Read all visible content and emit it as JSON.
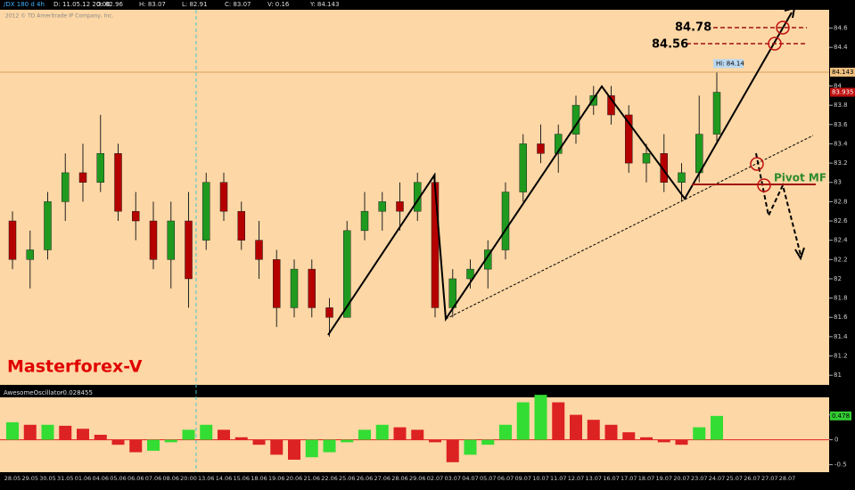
{
  "header": {
    "symbol": "/DX 180 d 4h",
    "fields": [
      "D: 11.05.12 20:00",
      "O: 82.96",
      "H: 83.07",
      "L: 82.91",
      "C: 83.07",
      "V: 0.16",
      "Y: 84.143"
    ]
  },
  "copyright": "2012 © TD Ameritrade IP Company, Inc.",
  "watermark": "Masterforex-V",
  "chart_data": [
    {
      "type": "candlestick",
      "categories": [
        "28.05",
        "29.05",
        "30.05",
        "31.05",
        "01.06",
        "04.06",
        "05.06",
        "06.06",
        "07.06",
        "08.06",
        "20:00",
        "13.06",
        "14.06",
        "15.06",
        "18.06",
        "19.06",
        "20.06",
        "21.06",
        "22.06",
        "25.06",
        "26.06",
        "27.06",
        "28.06",
        "29.06",
        "02.07",
        "03.07",
        "04.07",
        "05.07",
        "06.07",
        "09.07",
        "10.07",
        "11.07",
        "12.07",
        "13.07",
        "16.07",
        "17.07",
        "18.07",
        "19.07",
        "20.07",
        "23.07",
        "24.07",
        "25.07",
        "26.07",
        "27.07",
        "28.07"
      ],
      "open": [
        82.6,
        82.2,
        82.3,
        82.8,
        83.1,
        83.0,
        83.3,
        82.7,
        82.6,
        82.2,
        82.6,
        82.4,
        83.0,
        82.7,
        82.4,
        82.2,
        81.7,
        82.1,
        81.7,
        81.6,
        82.5,
        82.7,
        82.8,
        82.7,
        83.0,
        81.7,
        82.0,
        82.1,
        82.3,
        82.9,
        83.4,
        83.3,
        83.5,
        83.8,
        83.9,
        83.7,
        83.2,
        83.3,
        83.0,
        83.1,
        83.5,
        null,
        null,
        null,
        null
      ],
      "high": [
        82.7,
        82.5,
        82.9,
        83.3,
        83.4,
        83.7,
        83.4,
        82.9,
        82.8,
        82.8,
        82.9,
        83.1,
        83.1,
        82.8,
        82.6,
        82.3,
        82.2,
        82.2,
        81.8,
        82.6,
        82.9,
        82.9,
        83.0,
        83.1,
        83.1,
        82.1,
        82.2,
        82.4,
        83.0,
        83.5,
        83.6,
        83.6,
        83.9,
        84.0,
        84.0,
        83.8,
        83.4,
        83.5,
        83.2,
        83.9,
        84.14,
        null,
        null,
        null,
        null
      ],
      "low": [
        82.1,
        81.9,
        82.2,
        82.6,
        82.8,
        82.9,
        82.6,
        82.4,
        82.1,
        81.9,
        81.7,
        82.3,
        82.6,
        82.3,
        82.0,
        81.5,
        81.6,
        81.6,
        81.4,
        81.6,
        82.4,
        82.5,
        82.5,
        82.6,
        81.6,
        81.6,
        81.9,
        81.9,
        82.2,
        82.8,
        83.2,
        83.1,
        83.4,
        83.7,
        83.6,
        83.1,
        83.0,
        82.9,
        82.8,
        83.0,
        83.4,
        null,
        null,
        null,
        null
      ],
      "close": [
        82.2,
        82.3,
        82.8,
        83.1,
        83.0,
        83.3,
        82.7,
        82.6,
        82.2,
        82.6,
        82.0,
        83.0,
        82.7,
        82.4,
        82.2,
        81.7,
        82.1,
        81.7,
        81.6,
        82.5,
        82.7,
        82.8,
        82.7,
        83.0,
        81.7,
        82.0,
        82.1,
        82.3,
        82.9,
        83.4,
        83.3,
        83.5,
        83.8,
        83.9,
        83.7,
        83.2,
        83.3,
        83.0,
        83.1,
        83.5,
        83.935,
        null,
        null,
        null,
        null
      ],
      "up_color": "#1f9a1f",
      "down_color": "#b50000",
      "ylim": [
        80.9,
        84.79
      ],
      "yticks": [
        84.6,
        84.4,
        84,
        83.8,
        83.6,
        83.4,
        83.2,
        83,
        82.8,
        82.6,
        82.4,
        82.2,
        82,
        81.8,
        81.6,
        81.4,
        81.2,
        81
      ],
      "last_price": 84.143,
      "current_price": 83.935,
      "high_label": "Hi: 84.14",
      "levels": [
        84.78,
        84.56
      ],
      "pivot_label": "Pivot MF"
    },
    {
      "type": "bar",
      "title": "AwesomeOscillator",
      "current_value": -0.028455,
      "values": [
        0.35,
        0.3,
        0.3,
        0.28,
        0.22,
        0.1,
        -0.1,
        -0.25,
        -0.22,
        -0.05,
        0.2,
        0.3,
        0.2,
        0.05,
        -0.1,
        -0.3,
        -0.4,
        -0.35,
        -0.25,
        -0.05,
        0.2,
        0.3,
        0.25,
        0.2,
        -0.05,
        -0.45,
        -0.3,
        -0.1,
        0.3,
        0.75,
        0.9,
        0.75,
        0.5,
        0.4,
        0.3,
        0.15,
        0.05,
        -0.05,
        -0.1,
        0.25,
        0.478,
        null,
        null,
        null,
        null
      ],
      "ylim": [
        -0.65,
        0.85
      ],
      "yticks": [
        0.5,
        0,
        -0.5
      ],
      "last_value": 0.478,
      "up_color": "#33dd33",
      "down_color": "#dd2222"
    }
  ]
}
